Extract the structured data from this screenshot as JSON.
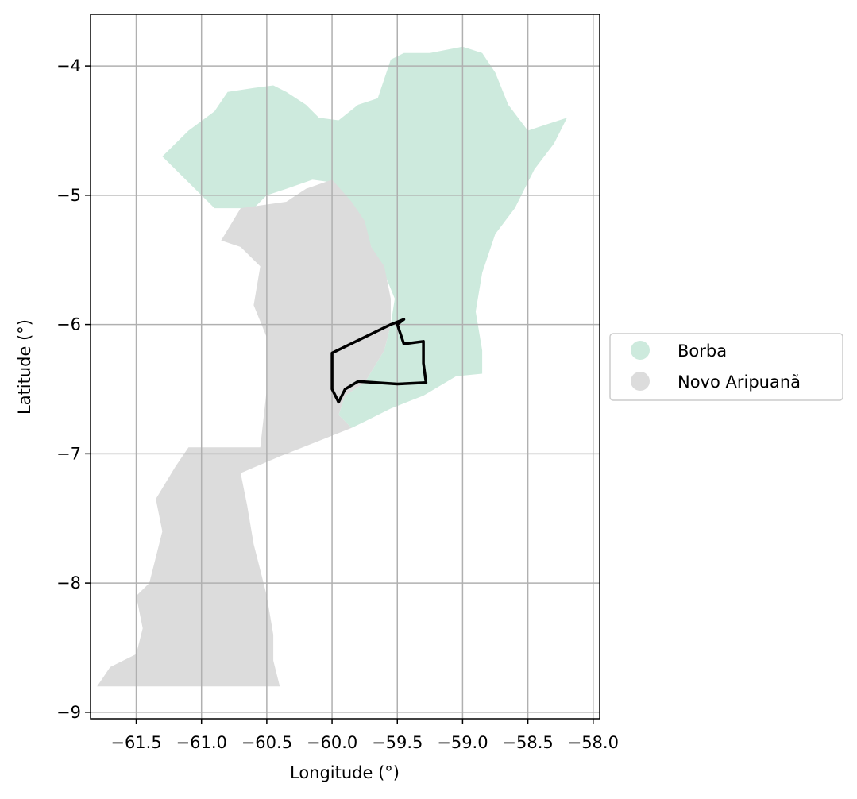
{
  "chart_data": {
    "type": "map",
    "xlabel": "Longitude (°)",
    "ylabel": "Latitude (°)",
    "xlim": [
      -61.85,
      -57.95
    ],
    "ylim": [
      -9.05,
      -3.6
    ],
    "xticks": [
      -61.5,
      -61.0,
      -60.5,
      -60.0,
      -59.5,
      -59.0,
      -58.5,
      -58.0
    ],
    "xtick_labels": [
      "−61.5",
      "−61.0",
      "−60.5",
      "−60.0",
      "−59.5",
      "−59.0",
      "−58.5",
      "−58.0"
    ],
    "yticks": [
      -4,
      -5,
      -6,
      -7,
      -8,
      -9
    ],
    "ytick_labels": [
      "−4",
      "−5",
      "−6",
      "−7",
      "−8",
      "−9"
    ],
    "grid": true,
    "legend_position": "right",
    "legend": [
      {
        "label": "Borba",
        "color": "#cdeadd"
      },
      {
        "label": "Novo Aripuanã",
        "color": "#dcdcdc"
      }
    ],
    "regions": [
      {
        "name": "Borba",
        "color": "#cdeadd",
        "polygon": [
          [
            -61.3,
            -4.7
          ],
          [
            -61.1,
            -4.5
          ],
          [
            -60.9,
            -4.35
          ],
          [
            -60.8,
            -4.2
          ],
          [
            -60.6,
            -4.17
          ],
          [
            -60.45,
            -4.15
          ],
          [
            -60.35,
            -4.2
          ],
          [
            -60.2,
            -4.3
          ],
          [
            -60.1,
            -4.4
          ],
          [
            -59.95,
            -4.42
          ],
          [
            -59.8,
            -4.3
          ],
          [
            -59.65,
            -4.25
          ],
          [
            -59.6,
            -4.1
          ],
          [
            -59.55,
            -3.95
          ],
          [
            -59.45,
            -3.9
          ],
          [
            -59.25,
            -3.9
          ],
          [
            -59.0,
            -3.85
          ],
          [
            -58.85,
            -3.9
          ],
          [
            -58.75,
            -4.05
          ],
          [
            -58.65,
            -4.3
          ],
          [
            -58.5,
            -4.5
          ],
          [
            -58.35,
            -4.45
          ],
          [
            -58.2,
            -4.4
          ],
          [
            -58.3,
            -4.6
          ],
          [
            -58.45,
            -4.8
          ],
          [
            -58.6,
            -5.1
          ],
          [
            -58.75,
            -5.3
          ],
          [
            -58.85,
            -5.6
          ],
          [
            -58.9,
            -5.9
          ],
          [
            -58.85,
            -6.2
          ],
          [
            -58.85,
            -6.38
          ],
          [
            -59.05,
            -6.4
          ],
          [
            -59.3,
            -6.55
          ],
          [
            -59.55,
            -6.65
          ],
          [
            -59.75,
            -6.75
          ],
          [
            -59.85,
            -6.8
          ],
          [
            -59.95,
            -6.7
          ],
          [
            -59.9,
            -6.55
          ],
          [
            -59.75,
            -6.45
          ],
          [
            -59.6,
            -6.2
          ],
          [
            -59.55,
            -6.0
          ],
          [
            -59.52,
            -5.8
          ],
          [
            -59.6,
            -5.6
          ],
          [
            -59.7,
            -5.4
          ],
          [
            -59.8,
            -5.2
          ],
          [
            -59.9,
            -5.0
          ],
          [
            -60.0,
            -4.9
          ],
          [
            -60.15,
            -4.88
          ],
          [
            -60.35,
            -4.95
          ],
          [
            -60.5,
            -5.0
          ],
          [
            -60.6,
            -5.1
          ],
          [
            -60.9,
            -5.1
          ],
          [
            -61.05,
            -4.95
          ],
          [
            -61.3,
            -4.7
          ]
        ]
      },
      {
        "name": "Novo Aripuanã",
        "color": "#dcdcdc",
        "polygon": [
          [
            -60.0,
            -4.88
          ],
          [
            -59.85,
            -5.05
          ],
          [
            -59.75,
            -5.2
          ],
          [
            -59.7,
            -5.4
          ],
          [
            -59.6,
            -5.55
          ],
          [
            -59.55,
            -5.8
          ],
          [
            -59.55,
            -6.0
          ],
          [
            -59.6,
            -6.2
          ],
          [
            -59.75,
            -6.45
          ],
          [
            -59.9,
            -6.55
          ],
          [
            -59.95,
            -6.7
          ],
          [
            -59.85,
            -6.8
          ],
          [
            -60.1,
            -6.9
          ],
          [
            -60.4,
            -7.02
          ],
          [
            -60.7,
            -7.15
          ],
          [
            -60.65,
            -7.4
          ],
          [
            -60.6,
            -7.7
          ],
          [
            -60.55,
            -7.9
          ],
          [
            -60.5,
            -8.1
          ],
          [
            -60.45,
            -8.4
          ],
          [
            -60.45,
            -8.6
          ],
          [
            -60.4,
            -8.8
          ],
          [
            -61.8,
            -8.8
          ],
          [
            -61.7,
            -8.65
          ],
          [
            -61.5,
            -8.55
          ],
          [
            -61.45,
            -8.35
          ],
          [
            -61.5,
            -8.1
          ],
          [
            -61.4,
            -8.0
          ],
          [
            -61.35,
            -7.8
          ],
          [
            -61.3,
            -7.6
          ],
          [
            -61.35,
            -7.35
          ],
          [
            -61.2,
            -7.1
          ],
          [
            -61.1,
            -6.95
          ],
          [
            -60.8,
            -6.95
          ],
          [
            -60.55,
            -6.95
          ],
          [
            -60.5,
            -6.5
          ],
          [
            -60.5,
            -6.1
          ],
          [
            -60.6,
            -5.85
          ],
          [
            -60.55,
            -5.55
          ],
          [
            -60.7,
            -5.4
          ],
          [
            -60.85,
            -5.35
          ],
          [
            -60.7,
            -5.1
          ],
          [
            -60.35,
            -5.05
          ],
          [
            -60.2,
            -4.95
          ],
          [
            -60.0,
            -4.88
          ]
        ]
      }
    ],
    "outline": {
      "color": "#000000",
      "polygon": [
        [
          -60.0,
          -6.22
        ],
        [
          -59.55,
          -6.0
        ],
        [
          -59.45,
          -5.96
        ],
        [
          -59.5,
          -6.0
        ],
        [
          -59.45,
          -6.15
        ],
        [
          -59.3,
          -6.13
        ],
        [
          -59.3,
          -6.3
        ],
        [
          -59.28,
          -6.45
        ],
        [
          -59.5,
          -6.46
        ],
        [
          -59.8,
          -6.44
        ],
        [
          -59.9,
          -6.5
        ],
        [
          -59.95,
          -6.6
        ],
        [
          -60.0,
          -6.5
        ],
        [
          -60.0,
          -6.22
        ]
      ]
    }
  }
}
